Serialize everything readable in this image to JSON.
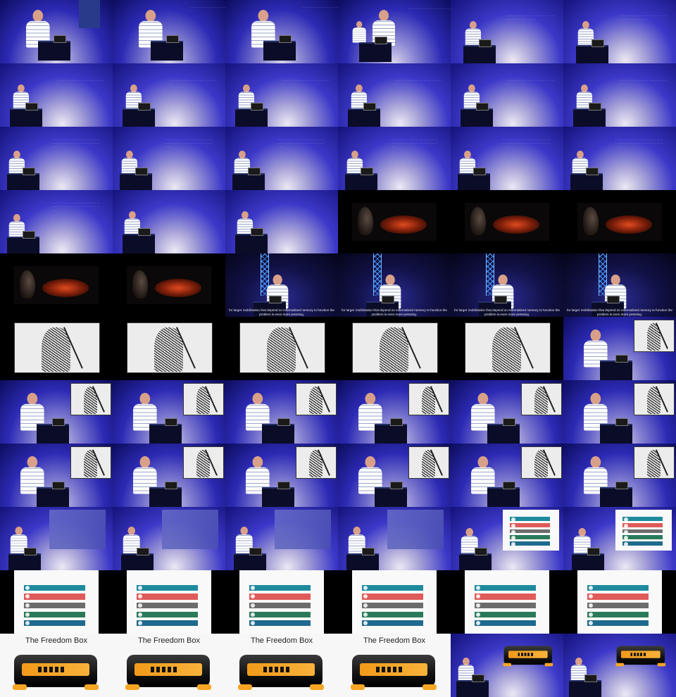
{
  "contact_sheet": {
    "columns": 6,
    "rows": 11,
    "colors": {
      "stage_blue": "#3c38c8",
      "stage_deep": "#14127a",
      "shirt": "#ffffff",
      "freedom_orange": "#f5a623"
    },
    "slides": {
      "faint_text": "· · · · · · · · · · · · · · ·",
      "caption": "for larger mobilization that depend on externalized memory to function the problem is even more pressing.",
      "freedom_box_title": "The Freedom Box"
    }
  }
}
